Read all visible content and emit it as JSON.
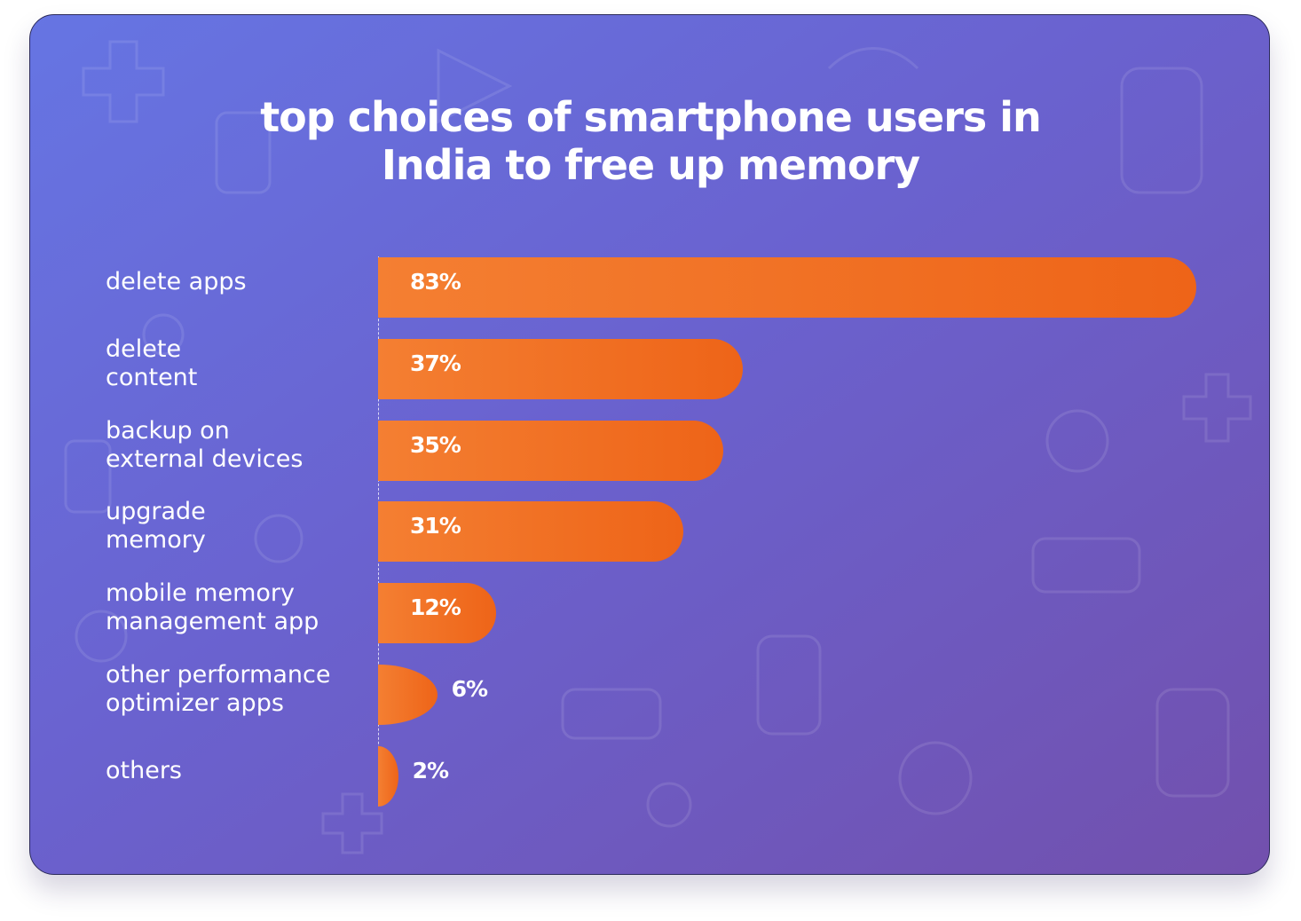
{
  "chart_data": {
    "type": "bar",
    "orientation": "horizontal",
    "title_lines": [
      "top choices of smartphone users in",
      "India to free up memory"
    ],
    "categories": [
      "delete apps",
      "delete\ncontent",
      "backup on\nexternal devices",
      "upgrade\nmemory",
      "mobile memory\nmanagement app",
      "other performance\noptimizer apps",
      "others"
    ],
    "values": [
      83,
      37,
      35,
      31,
      12,
      6,
      2
    ],
    "value_labels": [
      "83%",
      "37%",
      "35%",
      "31%",
      "12%",
      "6%",
      "2%"
    ],
    "xlim": [
      0,
      83
    ],
    "grid": false,
    "legend": "none",
    "bar_color": "#f07124"
  }
}
